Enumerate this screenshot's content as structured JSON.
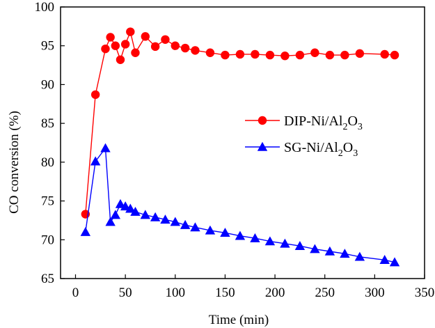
{
  "chart_data": {
    "type": "line",
    "title": "",
    "xlabel": "Time (min)",
    "ylabel": "CO conversion (%)",
    "xlim": [
      -15,
      350
    ],
    "ylim": [
      65,
      100
    ],
    "xticks": [
      0,
      50,
      100,
      150,
      200,
      250,
      300,
      350
    ],
    "yticks": [
      65,
      70,
      75,
      80,
      85,
      90,
      95,
      100
    ],
    "grid": false,
    "legend_position": "center-right",
    "series": [
      {
        "name": "DIP-Ni/Al2O3",
        "label_main": "DIP-Ni/Al",
        "label_sub1": "2",
        "label_mid": "O",
        "label_sub2": "3",
        "color": "#ff0000",
        "marker": "circle",
        "x": [
          10,
          20,
          30,
          35,
          40,
          45,
          50,
          55,
          60,
          70,
          80,
          90,
          100,
          110,
          120,
          135,
          150,
          165,
          180,
          195,
          210,
          225,
          240,
          255,
          270,
          285,
          310,
          320
        ],
        "y": [
          73.3,
          88.7,
          94.6,
          96.1,
          95.0,
          93.2,
          95.2,
          96.8,
          94.1,
          96.2,
          94.9,
          95.8,
          95.0,
          94.7,
          94.4,
          94.1,
          93.8,
          93.9,
          93.9,
          93.8,
          93.7,
          93.8,
          94.1,
          93.8,
          93.8,
          94.0,
          93.9,
          93.8
        ]
      },
      {
        "name": "SG-Ni/Al2O3",
        "label_main": "SG-Ni/Al",
        "label_sub1": "2",
        "label_mid": "O",
        "label_sub2": "3",
        "color": "#0000ff",
        "marker": "triangle",
        "x": [
          10,
          20,
          30,
          35,
          40,
          45,
          50,
          55,
          60,
          70,
          80,
          90,
          100,
          110,
          120,
          135,
          150,
          165,
          180,
          195,
          210,
          225,
          240,
          255,
          270,
          285,
          310,
          320
        ],
        "y": [
          71.0,
          80.1,
          81.8,
          72.3,
          73.2,
          74.6,
          74.3,
          74.0,
          73.6,
          73.2,
          72.9,
          72.6,
          72.3,
          71.9,
          71.6,
          71.2,
          70.9,
          70.5,
          70.2,
          69.8,
          69.5,
          69.2,
          68.8,
          68.5,
          68.2,
          67.8,
          67.4,
          67.1
        ]
      }
    ]
  }
}
